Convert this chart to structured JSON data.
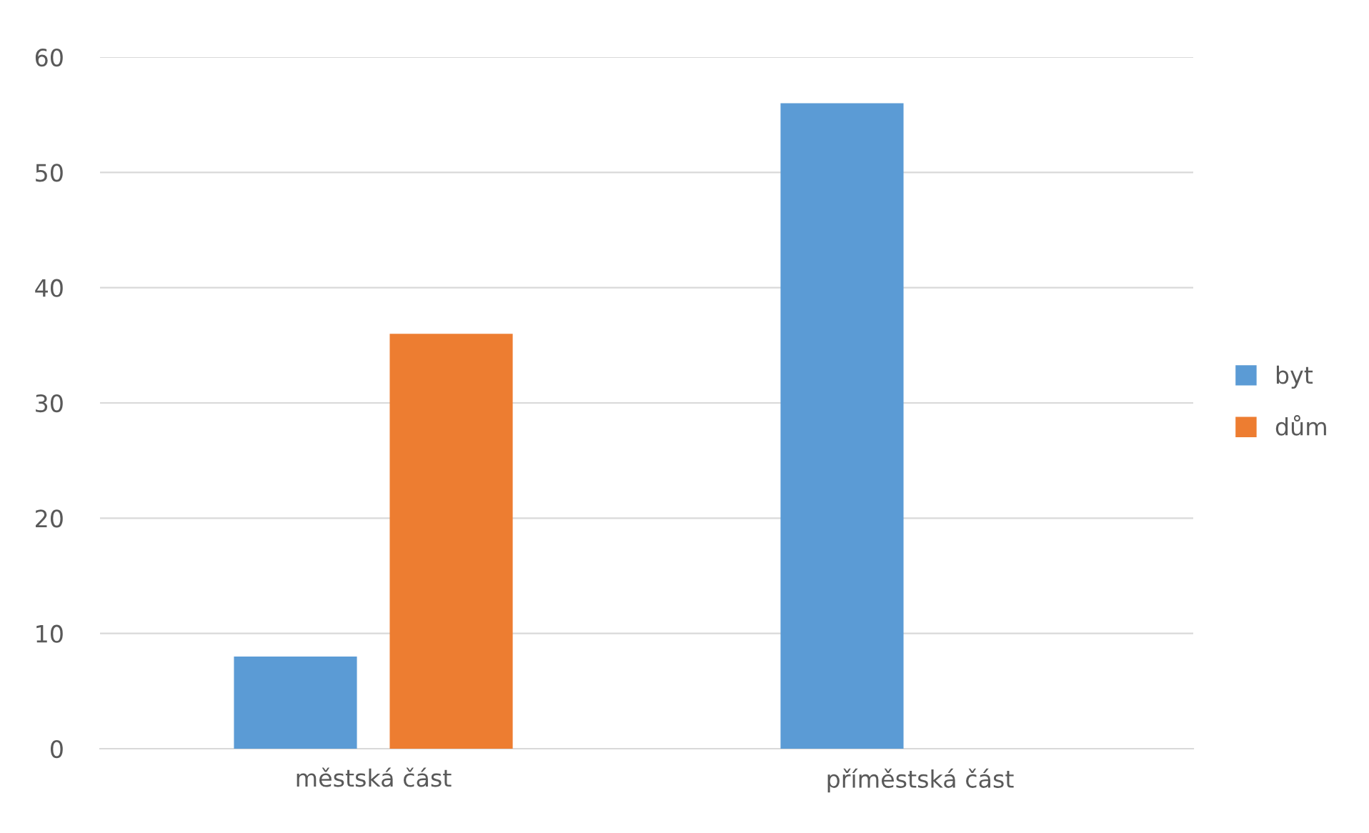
{
  "chart_data": {
    "type": "bar",
    "categories": [
      "městská část",
      "příměstská část"
    ],
    "series": [
      {
        "name": "byt",
        "color": "#5b9bd5",
        "values": [
          8,
          56
        ]
      },
      {
        "name": "dům",
        "color": "#ed7d31",
        "values": [
          36,
          0
        ]
      }
    ],
    "ylim": [
      0,
      60
    ],
    "yticks": [
      0,
      10,
      20,
      30,
      40,
      50,
      60
    ],
    "grid": "y",
    "legend": "right"
  }
}
